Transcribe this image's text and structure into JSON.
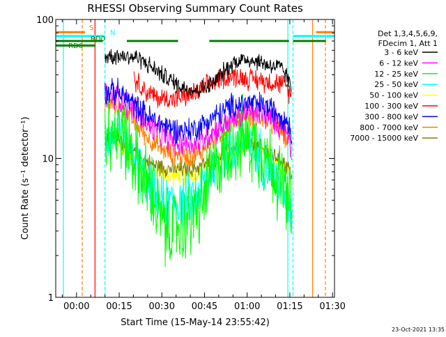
{
  "chart_data": {
    "type": "line",
    "title": "RHESSI Observing Summary Count Rates",
    "xlabel": "Start Time (15-May-14 23:55:42)",
    "ylabel": "Count Rate (s⁻¹ detector⁻¹)",
    "yscale": "log",
    "ylim": [
      1,
      100
    ],
    "xlim_minutes": [
      -3,
      95
    ],
    "x_unit": "minutes after 23:55:42 (tick labels are clock time)",
    "xticks": [
      {
        "label": "00:00",
        "t": 4.3
      },
      {
        "label": "00:15",
        "t": 19.3
      },
      {
        "label": "00:30",
        "t": 34.3
      },
      {
        "label": "00:45",
        "t": 49.3
      },
      {
        "label": "01:00",
        "t": 64.3
      },
      {
        "label": "01:15",
        "t": 79.3
      },
      {
        "label": "01:30",
        "t": 94.3
      }
    ],
    "yticks": [
      {
        "label": "1",
        "v": 1
      },
      {
        "label": "10",
        "v": 10
      },
      {
        "label": "100",
        "v": 100
      }
    ],
    "legend_header": [
      "Det 1,3,4,5,6,9,",
      "FDecim 1, Att 1"
    ],
    "legend_position": "right",
    "footer": "23-Oct-2021 13:35",
    "series": [
      {
        "name": "3 - 6 keV",
        "color": "#000000",
        "points": [
          [
            14.3,
            55
          ],
          [
            20,
            55
          ],
          [
            26,
            53
          ],
          [
            31,
            45
          ],
          [
            36,
            38
          ],
          [
            41,
            33
          ],
          [
            46,
            31
          ],
          [
            49,
            32
          ],
          [
            52,
            34
          ],
          [
            56,
            42
          ],
          [
            60,
            50
          ],
          [
            64,
            52
          ],
          [
            68,
            50
          ],
          [
            72,
            47
          ],
          [
            76,
            45
          ],
          [
            78,
            40
          ],
          [
            79.8,
            32
          ]
        ]
      },
      {
        "name": "6 - 12 keV",
        "color": "#ff00ff",
        "points": [
          [
            14.3,
            28
          ],
          [
            19,
            28
          ],
          [
            23,
            24
          ],
          [
            27,
            20
          ],
          [
            31,
            16
          ],
          [
            36,
            14
          ],
          [
            40,
            13
          ],
          [
            44,
            13
          ],
          [
            48,
            13
          ],
          [
            51,
            15
          ],
          [
            55,
            17
          ],
          [
            59,
            19
          ],
          [
            63,
            21
          ],
          [
            66,
            22
          ],
          [
            70,
            21
          ],
          [
            74,
            19
          ],
          [
            77,
            17
          ],
          [
            79,
            15
          ],
          [
            80,
            11
          ]
        ]
      },
      {
        "name": "12 - 25 keV",
        "color": "#00ff00",
        "points": [
          [
            14.3,
            16
          ],
          [
            19,
            16
          ],
          [
            23,
            12
          ],
          [
            27,
            8
          ],
          [
            30,
            6
          ],
          [
            33,
            4
          ],
          [
            36,
            3
          ],
          [
            40,
            3.2
          ],
          [
            44,
            3.5
          ],
          [
            48,
            4.5
          ],
          [
            51,
            7
          ],
          [
            55,
            10
          ],
          [
            59,
            13
          ],
          [
            63,
            14
          ],
          [
            66,
            13
          ],
          [
            70,
            11
          ],
          [
            74,
            8
          ],
          [
            77,
            6
          ],
          [
            79,
            4.5
          ],
          [
            80,
            4
          ]
        ]
      },
      {
        "name": "25 - 50 keV",
        "color": "#00ffff",
        "points": [
          [
            14.3,
            15
          ],
          [
            19,
            15
          ],
          [
            23,
            11
          ],
          [
            27,
            8
          ],
          [
            30,
            6
          ],
          [
            33,
            5
          ],
          [
            36,
            4.8
          ],
          [
            40,
            4.8
          ],
          [
            44,
            5
          ],
          [
            48,
            6
          ],
          [
            51,
            8
          ],
          [
            55,
            10
          ],
          [
            59,
            12
          ],
          [
            63,
            13
          ],
          [
            66,
            12
          ],
          [
            70,
            10
          ],
          [
            74,
            7.5
          ],
          [
            77,
            6
          ],
          [
            79,
            5
          ],
          [
            80,
            4.5
          ]
        ]
      },
      {
        "name": "50 - 100 keV",
        "color": "#ffff00",
        "points": [
          [
            14.3,
            13
          ],
          [
            19,
            13
          ],
          [
            23,
            11
          ],
          [
            27,
            9
          ],
          [
            31,
            8
          ],
          [
            36,
            7.6
          ],
          [
            40,
            7.5
          ],
          [
            44,
            7.5
          ],
          [
            48,
            8
          ],
          [
            51,
            9
          ],
          [
            55,
            10
          ],
          [
            59,
            11
          ],
          [
            63,
            12
          ],
          [
            66,
            12
          ],
          [
            70,
            11
          ],
          [
            74,
            10
          ],
          [
            77,
            9
          ],
          [
            79,
            8
          ],
          [
            80,
            7
          ]
        ]
      },
      {
        "name": "100 - 300 keV",
        "color": "#ff0000",
        "points": [
          [
            24.5,
            38
          ],
          [
            26,
            35
          ],
          [
            29,
            30
          ],
          [
            33,
            27
          ],
          [
            38,
            27
          ],
          [
            43,
            28
          ],
          [
            47,
            30
          ],
          [
            51,
            34
          ],
          [
            55,
            38
          ],
          [
            59,
            39
          ],
          [
            63,
            38
          ],
          [
            67,
            37
          ],
          [
            71,
            36
          ],
          [
            75,
            35
          ],
          [
            78,
            33
          ],
          [
            79.8,
            28
          ]
        ]
      },
      {
        "name": "300 - 800 keV",
        "color": "#0000ff",
        "points": [
          [
            14.3,
            30
          ],
          [
            19,
            30
          ],
          [
            23,
            26
          ],
          [
            27,
            22
          ],
          [
            31,
            19
          ],
          [
            36,
            17
          ],
          [
            40,
            16
          ],
          [
            44,
            16
          ],
          [
            48,
            17
          ],
          [
            51,
            19
          ],
          [
            55,
            21
          ],
          [
            59,
            24
          ],
          [
            63,
            25
          ],
          [
            66,
            25
          ],
          [
            70,
            24
          ],
          [
            74,
            22
          ],
          [
            77,
            20
          ],
          [
            79,
            18
          ],
          [
            80,
            14
          ]
        ]
      },
      {
        "name": "800 - 7000 keV",
        "color": "#ff8000",
        "points": [
          [
            14.3,
            24
          ],
          [
            19,
            24
          ],
          [
            23,
            20
          ],
          [
            27,
            16
          ],
          [
            31,
            13
          ],
          [
            36,
            11
          ],
          [
            40,
            10.5
          ],
          [
            44,
            10.3
          ],
          [
            48,
            11
          ],
          [
            51,
            13
          ],
          [
            55,
            15
          ],
          [
            59,
            18
          ],
          [
            63,
            20
          ],
          [
            66,
            20
          ],
          [
            70,
            19
          ],
          [
            74,
            17
          ],
          [
            77,
            15
          ],
          [
            79,
            13
          ],
          [
            80,
            11
          ]
        ]
      },
      {
        "name": "7000 - 15000 keV",
        "color": "#808000",
        "points": [
          [
            14.3,
            14
          ],
          [
            19,
            14
          ],
          [
            23,
            12
          ],
          [
            27,
            10
          ],
          [
            31,
            9
          ],
          [
            36,
            8.5
          ],
          [
            40,
            8.3
          ],
          [
            44,
            8.3
          ],
          [
            48,
            8.8
          ],
          [
            51,
            9.5
          ],
          [
            55,
            10.5
          ],
          [
            59,
            11.5
          ],
          [
            63,
            12.5
          ],
          [
            66,
            12.5
          ],
          [
            70,
            11.5
          ],
          [
            74,
            10.5
          ],
          [
            77,
            9.5
          ],
          [
            79,
            8.5
          ],
          [
            80,
            7.5
          ]
        ]
      }
    ],
    "flag_bars": [
      {
        "label": "S",
        "color": "#ff8000",
        "level": 81,
        "segments": [
          [
            -3,
            7.3
          ],
          [
            88.5,
            95
          ]
        ]
      },
      {
        "label": "N",
        "color": "#00ffff",
        "level": 76,
        "segments": [
          [
            -3,
            14.3
          ],
          [
            80.4,
            95
          ]
        ]
      },
      {
        "label": "RD0",
        "color": "#008000",
        "level": 70,
        "segments": [
          [
            -3,
            13.5
          ],
          [
            22,
            40
          ],
          [
            51,
            79
          ],
          [
            80.4,
            92
          ]
        ]
      },
      {
        "label": "RD6",
        "color": "#008000",
        "level": 65,
        "segments": [
          [
            -3,
            11
          ]
        ]
      }
    ],
    "vertical_markers": [
      {
        "t": -0.3,
        "color": "#00ffff",
        "style": "solid"
      },
      {
        "t": 6.3,
        "color": "#ff8000",
        "style": "dashed"
      },
      {
        "t": 10.8,
        "color": "#ff0000",
        "style": "solid"
      },
      {
        "t": 14.3,
        "color": "#00ffff",
        "style": "dashed"
      },
      {
        "t": 78.6,
        "color": "#00ffff",
        "style": "solid"
      },
      {
        "t": 80.4,
        "color": "#00ffff",
        "style": "dashed"
      },
      {
        "t": 87.3,
        "color": "#ff8000",
        "style": "solid"
      },
      {
        "t": 91.8,
        "color": "#ff8000",
        "style": "dashed"
      }
    ]
  }
}
